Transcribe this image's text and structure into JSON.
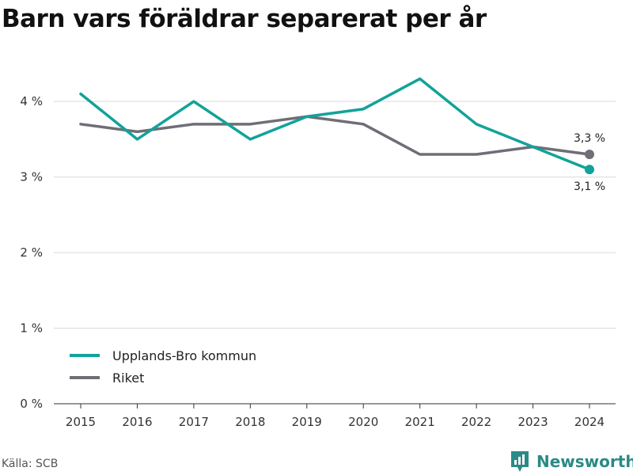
{
  "title": "Barn vars föräldrar separerat per år",
  "source": "Källa: SCB",
  "brand": {
    "name": "Newsworthy",
    "icon": "newsworthy-logo-icon",
    "color": "#2a8a86"
  },
  "chart_data": {
    "type": "line",
    "title": "Barn vars föräldrar separerat per år",
    "xlabel": "",
    "ylabel": "",
    "x": [
      "2015",
      "2016",
      "2017",
      "2018",
      "2019",
      "2020",
      "2021",
      "2022",
      "2023",
      "2024"
    ],
    "ylim": [
      0,
      4.4
    ],
    "yticks": [
      0,
      1,
      2,
      3,
      4
    ],
    "ytick_labels": [
      "0 %",
      "1 %",
      "2 %",
      "3 %",
      "4 %"
    ],
    "grid": true,
    "legend_position": "bottom-left",
    "series": [
      {
        "name": "Upplands-Bro kommun",
        "color": "#12a29a",
        "values": [
          4.1,
          3.5,
          4.0,
          3.5,
          3.8,
          3.9,
          4.3,
          3.7,
          3.4,
          3.1
        ],
        "end_label": "3,1 %"
      },
      {
        "name": "Riket",
        "color": "#6e6e76",
        "values": [
          3.7,
          3.6,
          3.7,
          3.7,
          3.8,
          3.7,
          3.3,
          3.3,
          3.4,
          3.3
        ],
        "end_label": "3,3 %"
      }
    ]
  }
}
